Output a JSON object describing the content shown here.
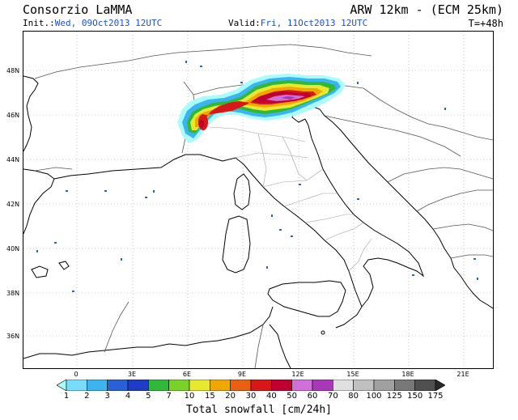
{
  "header": {
    "title_left": "Consorzio LaMMA",
    "title_right": "ARW 12km - (ECM 25km)",
    "init_label": "Init.:",
    "init_value": "Wed, 09Oct2013 12UTC",
    "valid_label": "Valid:",
    "valid_value": "Fri, 11Oct2013 12UTC",
    "step": "T=+48h"
  },
  "map": {
    "lat_labels": [
      "48N",
      "46N",
      "44N",
      "42N",
      "40N",
      "38N",
      "36N"
    ],
    "lon_labels": [
      "0",
      "3E",
      "6E",
      "9E",
      "12E",
      "15E",
      "18E",
      "21E"
    ]
  },
  "legend": {
    "title": "Total snowfall [cm/24h]",
    "labels": [
      "1",
      "2",
      "3",
      "4",
      "5",
      "7",
      "10",
      "15",
      "20",
      "30",
      "40",
      "50",
      "60",
      "70",
      "80",
      "100",
      "125",
      "150",
      "175"
    ],
    "colors": [
      "#a8fcfc",
      "#78dcfc",
      "#3cb4f0",
      "#2860d8",
      "#1e3cc8",
      "#30b838",
      "#78d228",
      "#e8e830",
      "#f0a800",
      "#e86010",
      "#d81818",
      "#c00030",
      "#d070d8",
      "#a838b8",
      "#e0e0e0",
      "#c0c0c0",
      "#a0a0a0",
      "#787878",
      "#505050",
      "#282828"
    ],
    "snow_colors": {
      "light": "#a8fcfc",
      "cyan": "#3cb4f0",
      "green": "#30b838",
      "yellow": "#e8e830",
      "orange": "#f0a800",
      "red": "#d81818",
      "magenta": "#c00030",
      "purple": "#a838b8",
      "lilac": "#d070d8"
    }
  }
}
